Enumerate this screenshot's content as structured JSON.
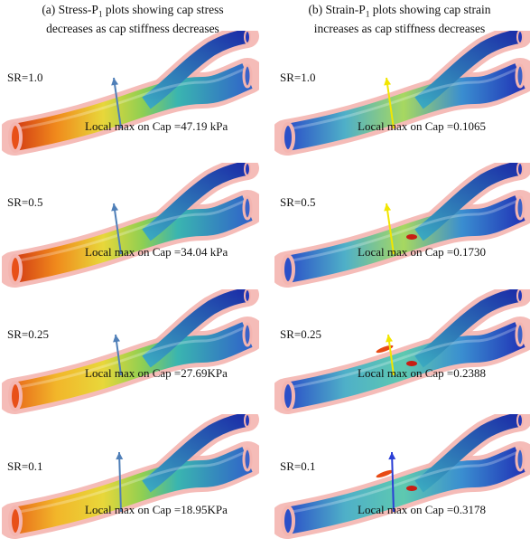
{
  "columns": [
    {
      "id": "a",
      "title_lines": [
        "(a) Stress-P",
        "plots showing cap stress",
        "decreases as cap stiffness decreases"
      ],
      "title_sub": "1",
      "arrow_color": "#4f7fb8",
      "panels": [
        {
          "sr": "SR=1.0",
          "annotation": "Local max on Cap =47.19 kPa",
          "level": 1.0
        },
        {
          "sr": "SR=0.5",
          "annotation": "Local max on Cap =34.04 kPa",
          "level": 0.72
        },
        {
          "sr": "SR=0.25",
          "annotation": "Local max on Cap =27.69KPa",
          "level": 0.55
        },
        {
          "sr": "SR=0.1",
          "annotation": "Local max on Cap =18.95KPa",
          "level": 0.4
        }
      ]
    },
    {
      "id": "b",
      "title_lines": [
        "(b) Strain-P",
        "plots showing cap strain",
        "increases as cap stiffness decreases"
      ],
      "title_sub": "1",
      "arrow_colors": [
        "#f2e600",
        "#f2e600",
        "#f2e600",
        "#2b3fd6"
      ],
      "panels": [
        {
          "sr": "SR=1.0",
          "annotation": "Local max on Cap =0.1065",
          "level": 0.1
        },
        {
          "sr": "SR=0.5",
          "annotation": "Local max on Cap =0.1730",
          "level": 0.25
        },
        {
          "sr": "SR=0.25",
          "annotation": "Local max on Cap =0.2388",
          "level": 0.4
        },
        {
          "sr": "SR=0.1",
          "annotation": "Local max on Cap =0.3178",
          "level": 0.55
        }
      ]
    }
  ]
}
